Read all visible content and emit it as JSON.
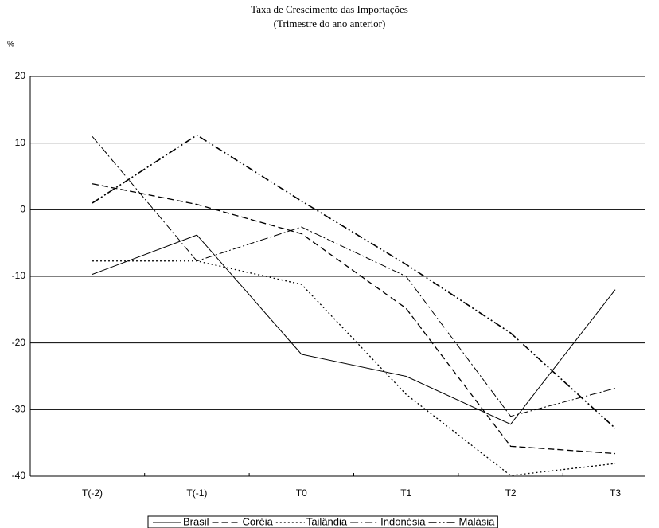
{
  "chart_data": {
    "type": "line",
    "title": "Taxa de Crescimento das Importações",
    "subtitle": "(Trimestre do ano anterior)",
    "y_label": "%",
    "categories": [
      "T(-2)",
      "T(-1)",
      "T0",
      "T1",
      "T2",
      "T3"
    ],
    "series": [
      {
        "name": "Brasil",
        "color": "#000000",
        "values": [
          -9.7,
          -3.8,
          -21.7,
          -25,
          -32.2,
          -12
        ]
      },
      {
        "name": "Coréia",
        "color": "#000000",
        "values": [
          3.9,
          0.8,
          -3.6,
          -14.8,
          -35.5,
          -36.6
        ]
      },
      {
        "name": "Tailândia",
        "color": "#000000",
        "values": [
          -7.7,
          -7.7,
          -11.2,
          -27.7,
          -39.9,
          -38.1
        ]
      },
      {
        "name": "Indonésia",
        "color": "#000000",
        "values": [
          11,
          -7.7,
          -2.6,
          -10,
          -31,
          -26.8
        ]
      },
      {
        "name": "Malásia",
        "color": "#000000",
        "values": [
          1,
          11.2,
          1.3,
          -8.2,
          -18.5,
          -32.8
        ]
      }
    ],
    "ylim": [
      -40,
      20
    ],
    "yticks": [
      -40,
      -30,
      -20,
      -10,
      0,
      10,
      20
    ],
    "grid": true,
    "legend": "bottom"
  }
}
